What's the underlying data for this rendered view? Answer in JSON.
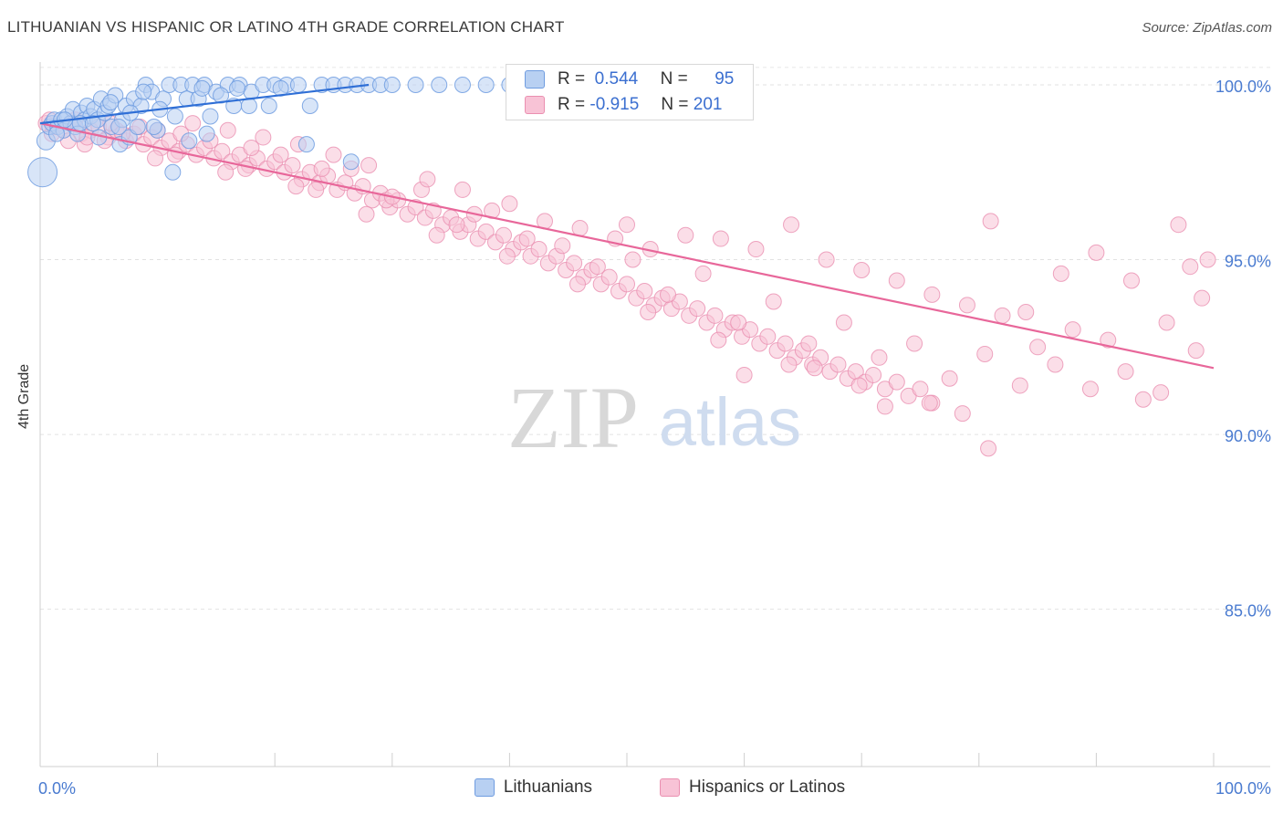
{
  "header": {
    "title": "LITHUANIAN VS HISPANIC OR LATINO 4TH GRADE CORRELATION CHART",
    "source": "Source: ZipAtlas.com"
  },
  "watermark": {
    "zip": "ZIP",
    "atlas": "atlas"
  },
  "legend": {
    "r_label": "R =",
    "n_label": "N =",
    "rows": [
      {
        "r": "0.544",
        "n": "95"
      },
      {
        "r": "-0.915",
        "n": "201"
      }
    ]
  },
  "bottom_legend": [
    "Lithuanians",
    "Hispanics or Latinos"
  ],
  "colors": {
    "blue_fill": "#b8d0f2",
    "blue_stroke": "#6f9ce0",
    "blue_line": "#2f6fd6",
    "pink_fill": "#f8c3d6",
    "pink_stroke": "#ea8fb0",
    "pink_line": "#e8679a",
    "tick_text": "#4a7bd0"
  },
  "chart_data": {
    "type": "scatter",
    "ylabel": "4th Grade",
    "xlim": [
      0,
      100
    ],
    "ylim": [
      80.5,
      100.6
    ],
    "x_tick_labels": [
      "0.0%",
      "100.0%"
    ],
    "y_ticks": [
      {
        "value": 100,
        "label": "100.0%"
      },
      {
        "value": 95,
        "label": "95.0%"
      },
      {
        "value": 90,
        "label": "90.0%"
      },
      {
        "value": 85,
        "label": "85.0%"
      }
    ],
    "grid": true,
    "series": [
      {
        "name": "Lithuanians",
        "trend": [
          [
            0,
            98.9
          ],
          [
            28,
            100.0
          ]
        ],
        "points": [
          [
            0.2,
            97.5
          ],
          [
            0.5,
            98.4
          ],
          [
            0.8,
            98.8
          ],
          [
            1.0,
            98.9
          ],
          [
            1.2,
            99.0
          ],
          [
            1.5,
            98.8
          ],
          [
            1.8,
            99.0
          ],
          [
            2.0,
            98.7
          ],
          [
            2.3,
            99.1
          ],
          [
            2.6,
            98.9
          ],
          [
            2.8,
            99.3
          ],
          [
            3.0,
            98.8
          ],
          [
            3.2,
            98.6
          ],
          [
            3.5,
            99.2
          ],
          [
            3.8,
            99.0
          ],
          [
            4.0,
            99.4
          ],
          [
            4.3,
            99.1
          ],
          [
            4.6,
            99.3
          ],
          [
            4.9,
            99.0
          ],
          [
            5.2,
            99.6
          ],
          [
            5.5,
            99.2
          ],
          [
            5.8,
            99.4
          ],
          [
            6.1,
            98.8
          ],
          [
            6.4,
            99.7
          ],
          [
            6.8,
            98.3
          ],
          [
            7.0,
            99.0
          ],
          [
            7.3,
            99.4
          ],
          [
            7.6,
            98.5
          ],
          [
            8.0,
            99.6
          ],
          [
            6.7,
            98.8
          ],
          [
            8.3,
            98.8
          ],
          [
            8.6,
            99.4
          ],
          [
            9.0,
            100.0
          ],
          [
            9.5,
            99.8
          ],
          [
            10.0,
            98.7
          ],
          [
            10.5,
            99.6
          ],
          [
            11.0,
            100.0
          ],
          [
            11.5,
            99.1
          ],
          [
            12.0,
            100.0
          ],
          [
            9.7,
            98.8
          ],
          [
            12.5,
            99.6
          ],
          [
            13.0,
            100.0
          ],
          [
            13.5,
            99.6
          ],
          [
            14.0,
            100.0
          ],
          [
            14.5,
            99.1
          ],
          [
            15.0,
            99.8
          ],
          [
            16.0,
            100.0
          ],
          [
            16.5,
            99.4
          ],
          [
            17.0,
            100.0
          ],
          [
            12.7,
            98.4
          ],
          [
            18.0,
            99.8
          ],
          [
            19.0,
            100.0
          ],
          [
            20.0,
            100.0
          ],
          [
            21.0,
            100.0
          ],
          [
            22.0,
            100.0
          ],
          [
            23.0,
            99.4
          ],
          [
            24.0,
            100.0
          ],
          [
            25.0,
            100.0
          ],
          [
            26.0,
            100.0
          ],
          [
            27.0,
            100.0
          ],
          [
            28.0,
            100.0
          ],
          [
            29.0,
            100.0
          ],
          [
            30.0,
            100.0
          ],
          [
            32.0,
            100.0
          ],
          [
            34.0,
            100.0
          ],
          [
            36.0,
            100.0
          ],
          [
            38.0,
            100.0
          ],
          [
            40.0,
            100.0
          ],
          [
            42.0,
            100.0
          ],
          [
            44.0,
            100.0
          ],
          [
            46.0,
            100.0
          ],
          [
            48.0,
            100.0
          ],
          [
            50.0,
            100.0
          ],
          [
            52.0,
            100.0
          ],
          [
            54.0,
            100.0
          ],
          [
            56.0,
            100.0
          ],
          [
            11.3,
            97.5
          ],
          [
            14.2,
            98.6
          ],
          [
            17.8,
            99.4
          ],
          [
            22.7,
            98.3
          ],
          [
            26.5,
            97.8
          ],
          [
            3.4,
            98.9
          ],
          [
            7.7,
            99.2
          ],
          [
            10.2,
            99.3
          ],
          [
            15.4,
            99.7
          ],
          [
            19.5,
            99.4
          ],
          [
            5.0,
            98.5
          ],
          [
            1.4,
            98.6
          ],
          [
            2.1,
            99.0
          ],
          [
            4.5,
            98.9
          ],
          [
            6.0,
            99.5
          ],
          [
            8.8,
            99.8
          ],
          [
            13.8,
            99.9
          ],
          [
            16.8,
            99.9
          ],
          [
            20.5,
            99.9
          ]
        ]
      },
      {
        "name": "Hispanics or Latinos",
        "trend": [
          [
            0,
            98.9
          ],
          [
            100,
            91.9
          ]
        ],
        "points": [
          [
            0.5,
            98.9
          ],
          [
            1.2,
            98.8
          ],
          [
            2.0,
            98.7
          ],
          [
            2.8,
            98.9
          ],
          [
            3.5,
            98.6
          ],
          [
            4.3,
            98.7
          ],
          [
            5.0,
            98.8
          ],
          [
            5.8,
            98.5
          ],
          [
            6.5,
            98.7
          ],
          [
            7.3,
            98.4
          ],
          [
            8.0,
            98.6
          ],
          [
            8.8,
            98.3
          ],
          [
            9.5,
            98.5
          ],
          [
            10.3,
            98.2
          ],
          [
            11.0,
            98.4
          ],
          [
            11.8,
            98.1
          ],
          [
            12.5,
            98.3
          ],
          [
            13.3,
            98.0
          ],
          [
            14.0,
            98.2
          ],
          [
            14.8,
            97.9
          ],
          [
            15.5,
            98.1
          ],
          [
            16.3,
            97.8
          ],
          [
            17.0,
            98.0
          ],
          [
            17.8,
            97.7
          ],
          [
            18.5,
            97.9
          ],
          [
            19.3,
            97.6
          ],
          [
            20.0,
            97.8
          ],
          [
            20.8,
            97.5
          ],
          [
            21.5,
            97.7
          ],
          [
            22.3,
            97.3
          ],
          [
            23.0,
            97.5
          ],
          [
            23.8,
            97.2
          ],
          [
            24.5,
            97.4
          ],
          [
            25.3,
            97.0
          ],
          [
            26.0,
            97.2
          ],
          [
            26.8,
            96.9
          ],
          [
            27.5,
            97.1
          ],
          [
            28.3,
            96.7
          ],
          [
            29.0,
            96.9
          ],
          [
            29.8,
            96.5
          ],
          [
            30.5,
            96.7
          ],
          [
            31.3,
            96.3
          ],
          [
            32.0,
            96.5
          ],
          [
            32.8,
            96.2
          ],
          [
            33.5,
            96.4
          ],
          [
            34.3,
            96.0
          ],
          [
            35.0,
            96.2
          ],
          [
            35.8,
            95.8
          ],
          [
            36.5,
            96.0
          ],
          [
            37.3,
            95.6
          ],
          [
            38.0,
            95.8
          ],
          [
            38.8,
            95.5
          ],
          [
            39.5,
            95.7
          ],
          [
            40.3,
            95.3
          ],
          [
            41.0,
            95.5
          ],
          [
            41.8,
            95.1
          ],
          [
            42.5,
            95.3
          ],
          [
            43.3,
            94.9
          ],
          [
            44.0,
            95.1
          ],
          [
            44.8,
            94.7
          ],
          [
            45.5,
            94.9
          ],
          [
            46.3,
            94.5
          ],
          [
            47.0,
            94.7
          ],
          [
            47.8,
            94.3
          ],
          [
            48.5,
            94.5
          ],
          [
            49.3,
            94.1
          ],
          [
            50.0,
            94.3
          ],
          [
            50.8,
            93.9
          ],
          [
            51.5,
            94.1
          ],
          [
            52.3,
            93.7
          ],
          [
            53.0,
            93.9
          ],
          [
            53.8,
            93.6
          ],
          [
            54.5,
            93.8
          ],
          [
            55.3,
            93.4
          ],
          [
            56.0,
            93.6
          ],
          [
            56.8,
            93.2
          ],
          [
            57.5,
            93.4
          ],
          [
            58.3,
            93.0
          ],
          [
            59.0,
            93.2
          ],
          [
            59.8,
            92.8
          ],
          [
            60.5,
            93.0
          ],
          [
            61.3,
            92.6
          ],
          [
            62.0,
            92.8
          ],
          [
            62.8,
            92.4
          ],
          [
            63.5,
            92.6
          ],
          [
            64.3,
            92.2
          ],
          [
            65.0,
            92.4
          ],
          [
            65.8,
            92.0
          ],
          [
            66.5,
            92.2
          ],
          [
            67.3,
            91.8
          ],
          [
            68.0,
            92.0
          ],
          [
            68.8,
            91.6
          ],
          [
            69.5,
            91.8
          ],
          [
            70.3,
            91.5
          ],
          [
            71.0,
            91.7
          ],
          [
            72.0,
            91.3
          ],
          [
            73.0,
            91.5
          ],
          [
            74.0,
            91.1
          ],
          [
            75.0,
            91.3
          ],
          [
            76.0,
            90.9
          ],
          [
            1.0,
            98.6
          ],
          [
            3.0,
            99.0
          ],
          [
            5.5,
            98.4
          ],
          [
            8.5,
            98.8
          ],
          [
            11.5,
            98.0
          ],
          [
            14.5,
            98.4
          ],
          [
            17.5,
            97.6
          ],
          [
            20.5,
            98.0
          ],
          [
            23.5,
            97.0
          ],
          [
            26.5,
            97.6
          ],
          [
            29.5,
            96.7
          ],
          [
            32.5,
            97.0
          ],
          [
            35.5,
            96.0
          ],
          [
            38.5,
            96.4
          ],
          [
            41.5,
            95.6
          ],
          [
            44.5,
            95.4
          ],
          [
            47.5,
            94.8
          ],
          [
            50.5,
            95.0
          ],
          [
            53.5,
            94.0
          ],
          [
            56.5,
            94.6
          ],
          [
            59.5,
            93.2
          ],
          [
            62.5,
            93.8
          ],
          [
            65.5,
            92.6
          ],
          [
            68.5,
            93.2
          ],
          [
            71.5,
            92.2
          ],
          [
            74.5,
            92.6
          ],
          [
            77.5,
            91.6
          ],
          [
            80.5,
            92.3
          ],
          [
            83.5,
            91.4
          ],
          [
            86.5,
            92.0
          ],
          [
            89.5,
            91.3
          ],
          [
            92.5,
            91.8
          ],
          [
            95.5,
            91.2
          ],
          [
            98.5,
            92.4
          ],
          [
            99.5,
            95.0
          ],
          [
            97.0,
            96.0
          ],
          [
            81.0,
            96.1
          ],
          [
            64.0,
            96.0
          ],
          [
            50.0,
            96.0
          ],
          [
            37.0,
            96.3
          ],
          [
            30.0,
            96.8
          ],
          [
            24.0,
            97.6
          ],
          [
            18.0,
            98.2
          ],
          [
            12.0,
            98.6
          ],
          [
            6.0,
            98.9
          ],
          [
            3.8,
            98.3
          ],
          [
            9.8,
            97.9
          ],
          [
            15.8,
            97.5
          ],
          [
            21.8,
            97.1
          ],
          [
            27.8,
            96.3
          ],
          [
            33.8,
            95.7
          ],
          [
            39.8,
            95.1
          ],
          [
            45.8,
            94.3
          ],
          [
            51.8,
            93.5
          ],
          [
            57.8,
            92.7
          ],
          [
            63.8,
            92.0
          ],
          [
            69.8,
            91.4
          ],
          [
            75.8,
            90.9
          ],
          [
            78.6,
            90.6
          ],
          [
            80.8,
            89.6
          ],
          [
            84.0,
            93.5
          ],
          [
            87.0,
            94.6
          ],
          [
            90.0,
            95.2
          ],
          [
            93.0,
            94.4
          ],
          [
            96.0,
            93.2
          ],
          [
            98.0,
            94.8
          ],
          [
            99.0,
            93.9
          ],
          [
            91.0,
            92.7
          ],
          [
            88.0,
            93.0
          ],
          [
            85.0,
            92.5
          ],
          [
            82.0,
            93.4
          ],
          [
            79.0,
            93.7
          ],
          [
            76.0,
            94.0
          ],
          [
            73.0,
            94.4
          ],
          [
            70.0,
            94.7
          ],
          [
            67.0,
            95.0
          ],
          [
            61.0,
            95.3
          ],
          [
            58.0,
            95.6
          ],
          [
            55.0,
            95.7
          ],
          [
            52.0,
            95.3
          ],
          [
            49.0,
            95.6
          ],
          [
            46.0,
            95.9
          ],
          [
            43.0,
            96.1
          ],
          [
            40.0,
            96.6
          ],
          [
            36.0,
            97.0
          ],
          [
            33.0,
            97.3
          ],
          [
            28.0,
            97.7
          ],
          [
            25.0,
            98.0
          ],
          [
            22.0,
            98.3
          ],
          [
            19.0,
            98.5
          ],
          [
            16.0,
            98.7
          ],
          [
            13.0,
            98.9
          ],
          [
            10.0,
            98.7
          ],
          [
            7.0,
            98.6
          ],
          [
            4.0,
            98.5
          ],
          [
            2.4,
            98.4
          ],
          [
            0.8,
            99.0
          ],
          [
            60.0,
            91.7
          ],
          [
            66.0,
            91.9
          ],
          [
            72.0,
            90.8
          ],
          [
            94.0,
            91.0
          ]
        ]
      }
    ]
  }
}
